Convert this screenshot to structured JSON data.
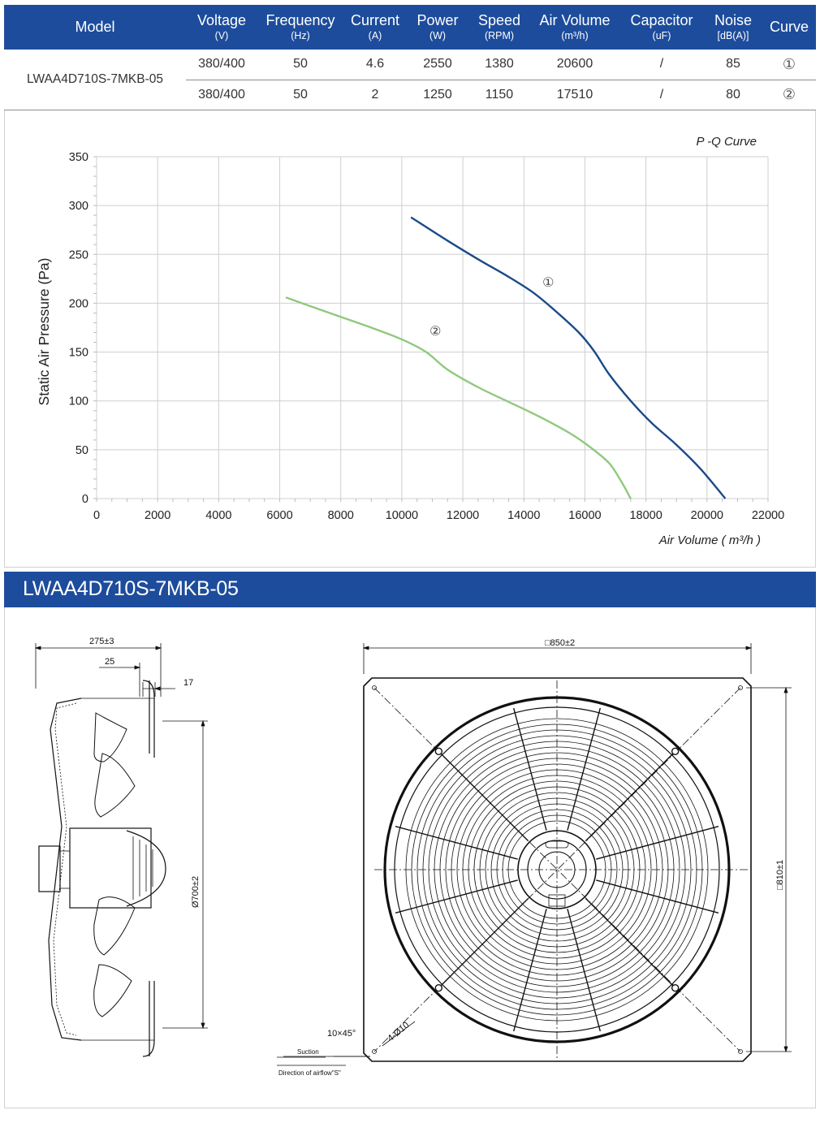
{
  "spec_table": {
    "headers": {
      "model": "Model",
      "voltage": "Voltage",
      "voltage_unit": "(V)",
      "frequency": "Frequency",
      "frequency_unit": "(Hz)",
      "current": "Current",
      "current_unit": "(A)",
      "power": "Power",
      "power_unit": "(W)",
      "speed": "Speed",
      "speed_unit": "(RPM)",
      "air_volume": "Air Volume",
      "air_volume_unit": "(m³/h)",
      "capacitor": "Capacitor",
      "capacitor_unit": "(uF)",
      "noise": "Noise",
      "noise_unit": "[dB(A)]",
      "curve": "Curve"
    },
    "model": "LWAA4D710S-7MKB-05",
    "rows": [
      {
        "voltage": "380/400",
        "frequency": "50",
        "current": "4.6",
        "power": "2550",
        "speed": "1380",
        "air_volume": "20600",
        "capacitor": "/",
        "noise": "85",
        "curve": "①"
      },
      {
        "voltage": "380/400",
        "frequency": "50",
        "current": "2",
        "power": "1250",
        "speed": "1150",
        "air_volume": "17510",
        "capacitor": "/",
        "noise": "80",
        "curve": "②"
      }
    ]
  },
  "chart_data": {
    "type": "line",
    "title": "P -Q Curve",
    "xlabel": "Air Volume ( m³/h )",
    "ylabel": "Static Air Pressure  (Pa)",
    "xlim": [
      0,
      22000
    ],
    "ylim": [
      0,
      350
    ],
    "x_ticks": [
      0,
      2000,
      4000,
      6000,
      8000,
      10000,
      12000,
      14000,
      16000,
      18000,
      20000,
      22000
    ],
    "y_ticks": [
      0,
      50,
      100,
      150,
      200,
      250,
      300,
      350
    ],
    "grid": true,
    "series": [
      {
        "name": "①",
        "color": "#1a4a8a",
        "x": [
          10300,
          11500,
          12500,
          13500,
          14300,
          15000,
          15800,
          16300,
          16800,
          17500,
          18200,
          19000,
          19800,
          20600
        ],
        "y": [
          288,
          264,
          245,
          227,
          211,
          193,
          170,
          151,
          127,
          100,
          77,
          55,
          30,
          0
        ],
        "label_at": [
          14800,
          217
        ]
      },
      {
        "name": "②",
        "color": "#8fc97d",
        "x": [
          6200,
          7000,
          8000,
          9000,
          10000,
          10800,
          11500,
          12500,
          13500,
          14500,
          15500,
          16200,
          16800,
          17200,
          17500
        ],
        "y": [
          206,
          197,
          186,
          175,
          163,
          150,
          132,
          114,
          99,
          84,
          67,
          52,
          36,
          17,
          0
        ],
        "label_at": [
          11100,
          167
        ]
      }
    ]
  },
  "drawing": {
    "title": "LWAA4D710S-7MKB-05",
    "dims": {
      "overall_depth": "275±3",
      "flange_offset": "25",
      "flange_thickness": "17",
      "guard_diameter": "Ø700±2",
      "plate_width": "□850±2",
      "hole_spacing": "□810±1",
      "chamfer": "10×45°",
      "holes": "4-Ø10",
      "suction": "Suction",
      "airflow": "Direction of airflow\"S\""
    }
  }
}
